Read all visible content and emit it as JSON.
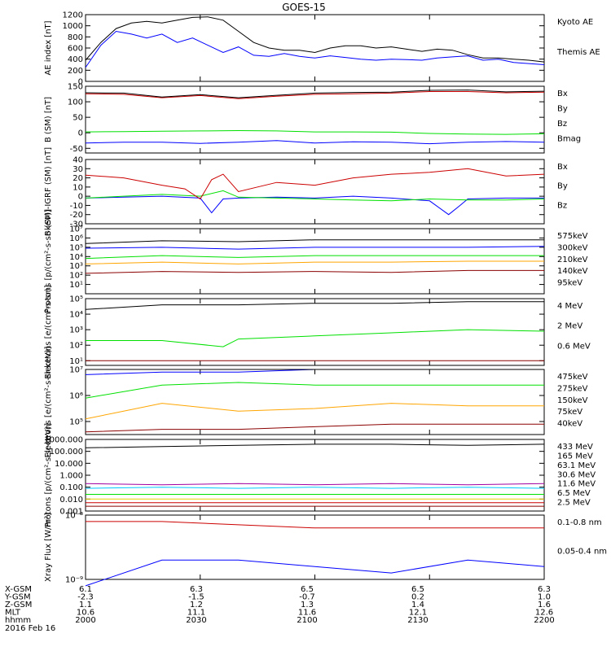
{
  "title": "GOES-15",
  "date_label": "2016 Feb 16",
  "footer": {
    "row_labels": [
      "X-GSM",
      "Y-GSM",
      "Z-GSM",
      "MLT",
      "hhmm"
    ],
    "columns": [
      [
        "6.1",
        "-2.3",
        "1.1",
        "10.6",
        "2000"
      ],
      [
        "6.3",
        "-1.5",
        "1.2",
        "11.1",
        "2030"
      ],
      [
        "6.5",
        "-0.7",
        "1.3",
        "11.6",
        "2100"
      ],
      [
        "6.5",
        "0.2",
        "1.4",
        "12.1",
        "2130"
      ],
      [
        "6.3",
        "1.0",
        "1.6",
        "12.6",
        "2200"
      ]
    ]
  },
  "colors": {
    "black": "#000000",
    "blue": "#0000ff",
    "red": "#cc0000",
    "green": "#00e000",
    "orange": "#ffa500",
    "darkred": "#8b0000",
    "cyan": "#00c8ff",
    "yellow": "#e8d000",
    "purple": "#a000a0"
  },
  "chart_data": [
    {
      "id": "ae",
      "type": "line",
      "ylabel": "AE index [nT]",
      "ylim": [
        0,
        1200
      ],
      "yscale": "linear",
      "yticks": [
        "0",
        "200",
        "400",
        "600",
        "800",
        "1000",
        "1200"
      ],
      "ytick_values": [
        0,
        200,
        400,
        600,
        800,
        1000,
        1200
      ],
      "series": [
        {
          "name": "Kyoto AE",
          "color": "blue",
          "x": [
            0,
            4,
            8,
            12,
            16,
            20,
            24,
            28,
            32,
            36,
            40,
            44,
            48,
            52,
            56,
            60,
            64,
            68,
            72,
            76,
            80,
            84,
            88,
            92,
            96,
            100,
            104,
            108,
            112,
            116,
            120
          ],
          "y": [
            250,
            650,
            900,
            850,
            780,
            850,
            700,
            780,
            650,
            520,
            620,
            470,
            450,
            500,
            450,
            420,
            460,
            430,
            400,
            380,
            400,
            390,
            380,
            420,
            440,
            460,
            380,
            400,
            340,
            320,
            300
          ]
        },
        {
          "name": "Themis AE",
          "color": "black",
          "x": [
            0,
            4,
            8,
            12,
            16,
            20,
            24,
            28,
            32,
            36,
            40,
            44,
            48,
            52,
            56,
            60,
            64,
            68,
            72,
            76,
            80,
            84,
            88,
            92,
            96,
            100,
            104,
            108,
            112,
            116,
            120
          ],
          "y": [
            380,
            700,
            950,
            1050,
            1080,
            1050,
            1100,
            1150,
            1160,
            1100,
            900,
            700,
            600,
            560,
            560,
            520,
            600,
            640,
            640,
            600,
            620,
            580,
            540,
            580,
            560,
            480,
            420,
            420,
            400,
            380,
            350
          ]
        }
      ]
    },
    {
      "id": "bsm",
      "type": "line",
      "ylabel": "B (SM) [nT]",
      "ylim": [
        -65,
        150
      ],
      "yscale": "linear",
      "yticks": [
        "-50",
        "0",
        "50",
        "100",
        "150"
      ],
      "ytick_values": [
        -50,
        0,
        50,
        100,
        150
      ],
      "series": [
        {
          "name": "Bx",
          "color": "blue",
          "x": [
            0,
            10,
            20,
            30,
            40,
            50,
            60,
            70,
            80,
            90,
            100,
            110,
            120
          ],
          "y": [
            -33,
            -30,
            -30,
            -34,
            -30,
            -25,
            -33,
            -29,
            -30,
            -35,
            -30,
            -28,
            -30
          ]
        },
        {
          "name": "By",
          "color": "green",
          "x": [
            0,
            10,
            20,
            30,
            40,
            50,
            60,
            70,
            80,
            90,
            100,
            110,
            120
          ],
          "y": [
            3,
            4,
            5,
            6,
            7,
            6,
            3,
            3,
            2,
            -2,
            -4,
            -5,
            -3
          ]
        },
        {
          "name": "Bz",
          "color": "red",
          "x": [
            0,
            10,
            20,
            30,
            40,
            50,
            60,
            70,
            80,
            90,
            100,
            110,
            120
          ],
          "y": [
            126,
            124,
            113,
            120,
            110,
            118,
            124,
            126,
            128,
            133,
            133,
            129,
            131
          ]
        },
        {
          "name": "Bmag",
          "color": "black",
          "x": [
            0,
            10,
            20,
            30,
            40,
            50,
            60,
            70,
            80,
            90,
            100,
            110,
            120
          ],
          "y": [
            129,
            128,
            115,
            123,
            113,
            121,
            128,
            130,
            131,
            137,
            138,
            132,
            134
          ]
        }
      ]
    },
    {
      "id": "bigrf",
      "type": "line",
      "ylabel": "B (SM)-IGRF (SM) [nT]",
      "ylim": [
        -30,
        40
      ],
      "yscale": "linear",
      "yticks": [
        "-30",
        "-20",
        "-10",
        "0",
        "10",
        "20",
        "30",
        "40"
      ],
      "ytick_values": [
        -30,
        -20,
        -10,
        0,
        10,
        20,
        30,
        40
      ],
      "series": [
        {
          "name": "Bx",
          "color": "blue",
          "x": [
            0,
            10,
            20,
            30,
            33,
            36,
            40,
            50,
            60,
            70,
            80,
            90,
            95,
            98,
            100,
            110,
            120
          ],
          "y": [
            -2,
            -1,
            0,
            -2,
            -18,
            -3,
            -2,
            -1,
            -2,
            0,
            -2,
            -5,
            -20,
            -10,
            -3,
            -2,
            -2
          ]
        },
        {
          "name": "By",
          "color": "green",
          "x": [
            0,
            10,
            20,
            30,
            36,
            40,
            50,
            60,
            70,
            80,
            90,
            100,
            110,
            120
          ],
          "y": [
            -2,
            0,
            2,
            0,
            6,
            -1,
            -2,
            -3,
            -4,
            -5,
            -3,
            -4,
            -4,
            -3
          ]
        },
        {
          "name": "Bz",
          "color": "red",
          "x": [
            0,
            10,
            20,
            26,
            30,
            33,
            36,
            40,
            50,
            60,
            70,
            80,
            90,
            100,
            110,
            120
          ],
          "y": [
            23,
            20,
            12,
            8,
            -3,
            18,
            24,
            5,
            15,
            12,
            20,
            24,
            26,
            30,
            22,
            24
          ]
        }
      ]
    },
    {
      "id": "protons",
      "type": "line",
      "ylabel": "Protons [p/(cm²-s-sr-keV)]",
      "ylim": [
        0,
        7
      ],
      "yscale": "log",
      "yticks": [
        "10¹",
        "10²",
        "10³",
        "10⁴",
        "10⁵",
        "10⁶",
        "10⁷"
      ],
      "ytick_values": [
        1,
        2,
        3,
        4,
        5,
        6,
        7
      ],
      "series": [
        {
          "name": "575keV",
          "color": "darkred",
          "x": [
            0,
            20,
            40,
            60,
            80,
            100,
            120
          ],
          "y": [
            2.2,
            2.4,
            2.3,
            2.4,
            2.3,
            2.5,
            2.5
          ]
        },
        {
          "name": "300keV",
          "color": "orange",
          "x": [
            0,
            20,
            40,
            60,
            80,
            100,
            120
          ],
          "y": [
            3.2,
            3.4,
            3.2,
            3.4,
            3.4,
            3.5,
            3.5
          ]
        },
        {
          "name": "210keV",
          "color": "green",
          "x": [
            0,
            20,
            40,
            60,
            80,
            100,
            120
          ],
          "y": [
            3.8,
            4.1,
            3.9,
            4.1,
            4.1,
            4.1,
            4.1
          ]
        },
        {
          "name": "140keV",
          "color": "blue",
          "x": [
            0,
            20,
            40,
            60,
            80,
            100,
            120
          ],
          "y": [
            4.9,
            5.0,
            4.8,
            5.0,
            5.0,
            5.0,
            5.1
          ]
        },
        {
          "name": "95keV",
          "color": "black",
          "x": [
            0,
            20,
            40,
            60,
            80,
            100,
            120
          ],
          "y": [
            5.4,
            5.7,
            5.6,
            5.8,
            5.8,
            5.8,
            5.8
          ]
        }
      ]
    },
    {
      "id": "electrons1",
      "type": "line",
      "ylabel": "Electrons [e/(cm²-s-sr)]",
      "ylim": [
        0.7,
        5
      ],
      "yscale": "log",
      "yticks": [
        "10¹",
        "10²",
        "10³",
        "10⁴",
        "10⁵"
      ],
      "ytick_values": [
        1,
        2,
        3,
        4,
        5
      ],
      "series": [
        {
          "name": "4 MeV",
          "color": "darkred",
          "x": [
            0,
            20,
            40,
            60,
            80,
            100,
            120
          ],
          "y": [
            1.0,
            1.0,
            1.0,
            1.0,
            1.0,
            1.0,
            1.0
          ]
        },
        {
          "name": "2 MeV",
          "color": "green",
          "x": [
            0,
            20,
            36,
            40,
            60,
            80,
            100,
            120
          ],
          "y": [
            2.3,
            2.3,
            1.9,
            2.4,
            2.6,
            2.8,
            3.0,
            2.9
          ]
        },
        {
          "name": "0.6 MeV",
          "color": "black",
          "x": [
            0,
            20,
            40,
            60,
            80,
            100,
            120
          ],
          "y": [
            4.3,
            4.6,
            4.6,
            4.7,
            4.7,
            4.8,
            4.8
          ]
        }
      ]
    },
    {
      "id": "electrons2",
      "type": "line",
      "ylabel": "Electrons [e/(cm²-s-sr-keV)]",
      "ylim": [
        4.5,
        7
      ],
      "yscale": "log",
      "yticks": [
        "10⁵",
        "10⁶",
        "10⁷"
      ],
      "ytick_values": [
        5,
        6,
        7
      ],
      "series": [
        {
          "name": "475keV",
          "color": "darkred",
          "x": [
            0,
            20,
            40,
            60,
            80,
            100,
            120
          ],
          "y": [
            4.6,
            4.7,
            4.7,
            4.8,
            4.9,
            4.9,
            4.9
          ]
        },
        {
          "name": "275keV",
          "color": "orange",
          "x": [
            0,
            20,
            40,
            60,
            80,
            100,
            120
          ],
          "y": [
            5.1,
            5.7,
            5.4,
            5.5,
            5.7,
            5.6,
            5.6
          ]
        },
        {
          "name": "150keV",
          "color": "green",
          "x": [
            0,
            20,
            40,
            60,
            80,
            100,
            120
          ],
          "y": [
            5.9,
            6.4,
            6.5,
            6.4,
            6.4,
            6.4,
            6.4
          ]
        },
        {
          "name": "75keV",
          "color": "blue",
          "x": [
            0,
            20,
            40,
            60,
            80,
            100,
            120
          ],
          "y": [
            6.8,
            6.9,
            6.9,
            7.0,
            7.0,
            7.0,
            7.0
          ]
        },
        {
          "name": "40keV",
          "color": "black",
          "x": [
            0,
            20,
            40,
            60,
            80,
            100,
            120
          ],
          "y": [
            7.0,
            7.0,
            7.0,
            7.0,
            7.0,
            7.0,
            7.0
          ]
        }
      ]
    },
    {
      "id": "protons2",
      "type": "line",
      "ylabel": "Protons [p/(cm²-s-sr-keV)]",
      "ylim": [
        -3,
        3
      ],
      "yscale": "log",
      "yticks": [
        "0.001",
        "0.010",
        "0.100",
        "1.000",
        "10.000",
        "100.000",
        "1000.000"
      ],
      "ytick_values": [
        -3,
        -2,
        -1,
        0,
        1,
        2,
        3
      ],
      "series": [
        {
          "name": "433 MeV",
          "color": "darkred",
          "x": [
            0,
            20,
            40,
            60,
            80,
            100,
            120
          ],
          "y": [
            -2.6,
            -2.6,
            -2.6,
            -2.6,
            -2.6,
            -2.6,
            -2.6
          ]
        },
        {
          "name": "165 MeV",
          "color": "red",
          "x": [
            0,
            20,
            40,
            60,
            80,
            100,
            120
          ],
          "y": [
            -2.3,
            -2.3,
            -2.3,
            -2.3,
            -2.3,
            -2.3,
            -2.3
          ]
        },
        {
          "name": "63.1 MeV",
          "color": "yellow",
          "x": [
            0,
            20,
            40,
            60,
            80,
            100,
            120
          ],
          "y": [
            -2.0,
            -2.0,
            -2.0,
            -2.0,
            -2.0,
            -2.0,
            -2.0
          ]
        },
        {
          "name": "30.6 MeV",
          "color": "green",
          "x": [
            0,
            20,
            40,
            60,
            80,
            100,
            120
          ],
          "y": [
            -1.6,
            -1.6,
            -1.6,
            -1.6,
            -1.6,
            -1.6,
            -1.6
          ]
        },
        {
          "name": "11.6 MeV",
          "color": "cyan",
          "x": [
            0,
            20,
            40,
            60,
            80,
            100,
            120
          ],
          "y": [
            -1.1,
            -1.0,
            -1.1,
            -1.0,
            -1.1,
            -1.0,
            -1.1
          ]
        },
        {
          "name": "6.5 MeV",
          "color": "purple",
          "x": [
            0,
            20,
            40,
            60,
            80,
            100,
            120
          ],
          "y": [
            -0.7,
            -0.8,
            -0.7,
            -0.8,
            -0.7,
            -0.8,
            -0.7
          ]
        },
        {
          "name": "2.5 MeV",
          "color": "black",
          "x": [
            0,
            20,
            40,
            60,
            80,
            100,
            120
          ],
          "y": [
            2.3,
            2.4,
            2.5,
            2.6,
            2.6,
            2.5,
            2.6
          ]
        }
      ]
    },
    {
      "id": "xray",
      "type": "line",
      "ylabel": "Xray Flux [W/m²]",
      "ylim": [
        -9,
        -8
      ],
      "yscale": "log",
      "yticks": [
        "10⁻⁹",
        "10⁻⁸",
        "10⁻⁷",
        "10⁻⁶"
      ],
      "ytick_values": [
        -9,
        -8,
        -7,
        -6
      ],
      "series": [
        {
          "name": "0.1-0.8 nm",
          "color": "red",
          "x": [
            0,
            20,
            40,
            60,
            80,
            100,
            120
          ],
          "y": [
            -8.1,
            -8.1,
            -8.15,
            -8.2,
            -8.2,
            -8.2,
            -8.2
          ]
        },
        {
          "name": "0.05-0.4 nm",
          "color": "blue",
          "x": [
            0,
            20,
            40,
            60,
            80,
            100,
            120
          ],
          "y": [
            -9.1,
            -8.7,
            -8.7,
            -8.8,
            -8.9,
            -8.7,
            -8.8
          ]
        }
      ]
    }
  ]
}
